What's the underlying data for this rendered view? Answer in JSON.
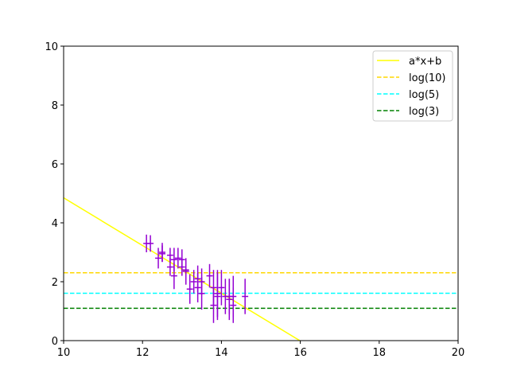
{
  "chart_data": {
    "type": "scatter",
    "title": "",
    "xlabel": "",
    "ylabel": "",
    "xlim": [
      10,
      20
    ],
    "ylim": [
      0,
      10
    ],
    "x_ticks": [
      10,
      12,
      14,
      16,
      18,
      20
    ],
    "y_ticks": [
      0,
      2,
      4,
      6,
      8,
      10
    ],
    "grid": false,
    "legend": {
      "position": "top-right",
      "entries": [
        {
          "label": "a*x+b",
          "color": "#ffff00",
          "style": "solid"
        },
        {
          "label": "log(10)",
          "color": "#ffd700",
          "style": "dashed"
        },
        {
          "label": "log(5)",
          "color": "#00ffff",
          "style": "dashed"
        },
        {
          "label": "log(3)",
          "color": "#008000",
          "style": "dashed"
        }
      ]
    },
    "fit_line": {
      "slope": -0.81,
      "intercept": 12.95,
      "color": "#ffff00"
    },
    "hlines": [
      {
        "label": "log(10)",
        "y": 2.303,
        "color": "#ffd700"
      },
      {
        "label": "log(5)",
        "y": 1.609,
        "color": "#00ffff"
      },
      {
        "label": "log(3)",
        "y": 1.099,
        "color": "#008000"
      }
    ],
    "errorbar_series": {
      "color": "#9400d3",
      "points": [
        {
          "x": 12.1,
          "y": 3.3,
          "yerr": 0.3,
          "xerr": 0.08
        },
        {
          "x": 12.2,
          "y": 3.3,
          "yerr": 0.28,
          "xerr": 0.08
        },
        {
          "x": 12.4,
          "y": 2.8,
          "yerr": 0.35,
          "xerr": 0.08
        },
        {
          "x": 12.5,
          "y": 3.0,
          "yerr": 0.32,
          "xerr": 0.08
        },
        {
          "x": 12.5,
          "y": 2.95,
          "yerr": 0.28,
          "xerr": 0.08
        },
        {
          "x": 12.7,
          "y": 2.9,
          "yerr": 0.25,
          "xerr": 0.08
        },
        {
          "x": 12.7,
          "y": 2.5,
          "yerr": 0.3,
          "xerr": 0.08
        },
        {
          "x": 12.8,
          "y": 2.75,
          "yerr": 0.4,
          "xerr": 0.08
        },
        {
          "x": 12.8,
          "y": 2.2,
          "yerr": 0.45,
          "xerr": 0.08
        },
        {
          "x": 12.9,
          "y": 2.8,
          "yerr": 0.35,
          "xerr": 0.08
        },
        {
          "x": 13.0,
          "y": 2.5,
          "yerr": 0.3,
          "xerr": 0.08
        },
        {
          "x": 13.0,
          "y": 2.75,
          "yerr": 0.35,
          "xerr": 0.08
        },
        {
          "x": 13.1,
          "y": 2.4,
          "yerr": 0.3,
          "xerr": 0.08
        },
        {
          "x": 13.1,
          "y": 2.35,
          "yerr": 0.45,
          "xerr": 0.08
        },
        {
          "x": 13.2,
          "y": 1.75,
          "yerr": 0.5,
          "xerr": 0.08
        },
        {
          "x": 13.3,
          "y": 2.0,
          "yerr": 0.4,
          "xerr": 0.08
        },
        {
          "x": 13.4,
          "y": 2.1,
          "yerr": 0.45,
          "xerr": 0.08
        },
        {
          "x": 13.4,
          "y": 1.8,
          "yerr": 0.5,
          "xerr": 0.08
        },
        {
          "x": 13.5,
          "y": 1.6,
          "yerr": 0.55,
          "xerr": 0.08
        },
        {
          "x": 13.5,
          "y": 2.0,
          "yerr": 0.45,
          "xerr": 0.08
        },
        {
          "x": 13.7,
          "y": 2.2,
          "yerr": 0.4,
          "xerr": 0.08
        },
        {
          "x": 13.8,
          "y": 1.8,
          "yerr": 0.6,
          "xerr": 0.08
        },
        {
          "x": 13.8,
          "y": 1.2,
          "yerr": 0.6,
          "xerr": 0.08
        },
        {
          "x": 13.9,
          "y": 1.6,
          "yerr": 0.8,
          "xerr": 0.08
        },
        {
          "x": 13.9,
          "y": 1.5,
          "yerr": 0.8,
          "xerr": 0.08
        },
        {
          "x": 14.0,
          "y": 1.8,
          "yerr": 0.6,
          "xerr": 0.08
        },
        {
          "x": 14.1,
          "y": 1.5,
          "yerr": 0.6,
          "xerr": 0.08
        },
        {
          "x": 14.2,
          "y": 1.4,
          "yerr": 0.7,
          "xerr": 0.08
        },
        {
          "x": 14.2,
          "y": 1.5,
          "yerr": 0.6,
          "xerr": 0.08
        },
        {
          "x": 14.3,
          "y": 1.5,
          "yerr": 0.7,
          "xerr": 0.08
        },
        {
          "x": 14.3,
          "y": 1.2,
          "yerr": 0.6,
          "xerr": 0.08
        },
        {
          "x": 14.6,
          "y": 1.5,
          "yerr": 0.6,
          "xerr": 0.08
        }
      ]
    }
  }
}
